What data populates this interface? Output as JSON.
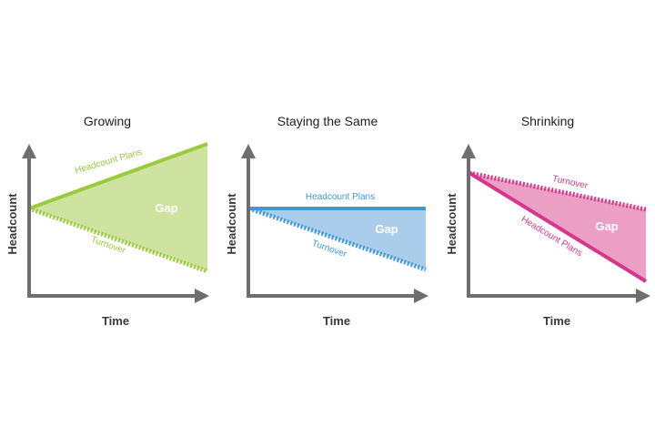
{
  "axes": {
    "x_label": "Time",
    "y_label": "Headcount"
  },
  "colors": {
    "axis": "#6e6e6e",
    "growing": "#9acb3c",
    "growing_fill": "#cfe3a0",
    "same": "#3c9bd6",
    "same_fill": "#a9cdeb",
    "shrinking": "#d6378a",
    "shrinking_fill": "#ec9fc5"
  },
  "panels": [
    {
      "title": "Growing",
      "headcount_label": "Headcount Plans",
      "turnover_label": "Turnover",
      "gap_label": "Gap"
    },
    {
      "title": "Staying the Same",
      "headcount_label": "Headcount Plans",
      "turnover_label": "Turnover",
      "gap_label": "Gap"
    },
    {
      "title": "Shrinking",
      "headcount_label": "Headcount Plans",
      "turnover_label": "Turnover",
      "gap_label": "Gap"
    }
  ]
}
